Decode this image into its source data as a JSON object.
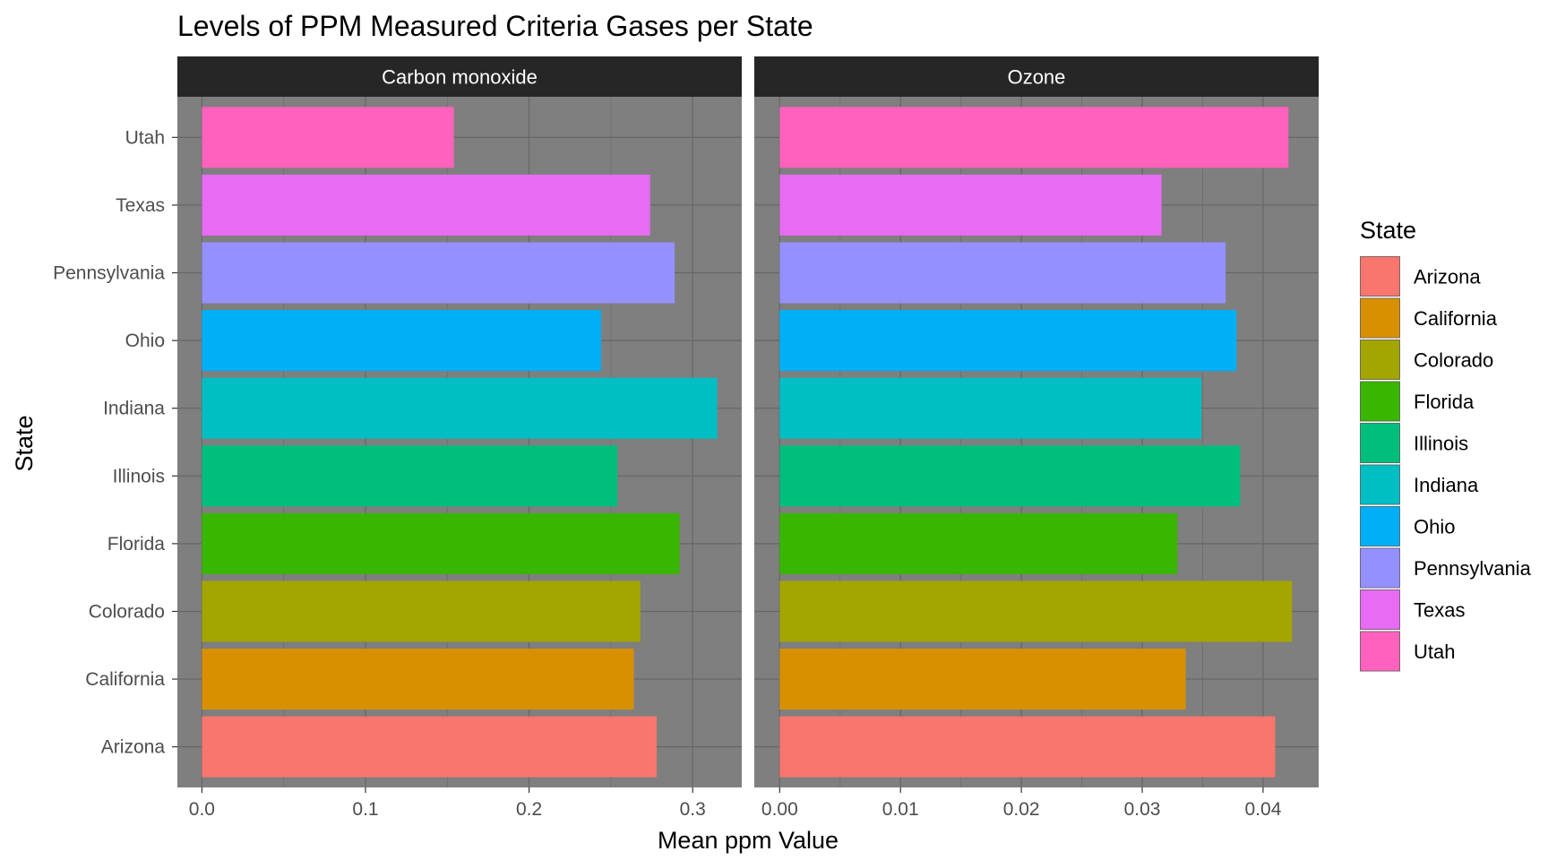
{
  "chart_data": {
    "type": "bar",
    "orientation": "horizontal",
    "title": "Levels of PPM Measured Criteria Gases per State",
    "xlabel": "Mean ppm Value",
    "ylabel": "State",
    "categories": [
      "Arizona",
      "California",
      "Colorado",
      "Florida",
      "Illinois",
      "Indiana",
      "Ohio",
      "Pennsylvania",
      "Texas",
      "Utah"
    ],
    "colors": [
      "#F8766D",
      "#D89000",
      "#A3A500",
      "#39B600",
      "#00BF7D",
      "#00BFC4",
      "#00B0F6",
      "#9590FF",
      "#E76BF3",
      "#FF62BC"
    ],
    "panels": [
      {
        "name": "Carbon monoxide",
        "xlim": [
          -0.015,
          0.33
        ],
        "ticks": [
          0.0,
          0.1,
          0.2,
          0.3
        ],
        "tick_labels": [
          "0.0",
          "0.1",
          "0.2",
          "0.3"
        ],
        "values": [
          0.278,
          0.264,
          0.268,
          0.292,
          0.254,
          0.315,
          0.244,
          0.289,
          0.274,
          0.154
        ]
      },
      {
        "name": "Ozone",
        "xlim": [
          -0.0021,
          0.0446
        ],
        "ticks": [
          0.0,
          0.01,
          0.02,
          0.03,
          0.04
        ],
        "tick_labels": [
          "0.00",
          "0.01",
          "0.02",
          "0.03",
          "0.04"
        ],
        "values": [
          0.041,
          0.0336,
          0.0424,
          0.0329,
          0.0381,
          0.0349,
          0.0378,
          0.0369,
          0.0316,
          0.0421
        ]
      }
    ],
    "legend": {
      "title": "State",
      "position": "right"
    },
    "grid": true
  }
}
